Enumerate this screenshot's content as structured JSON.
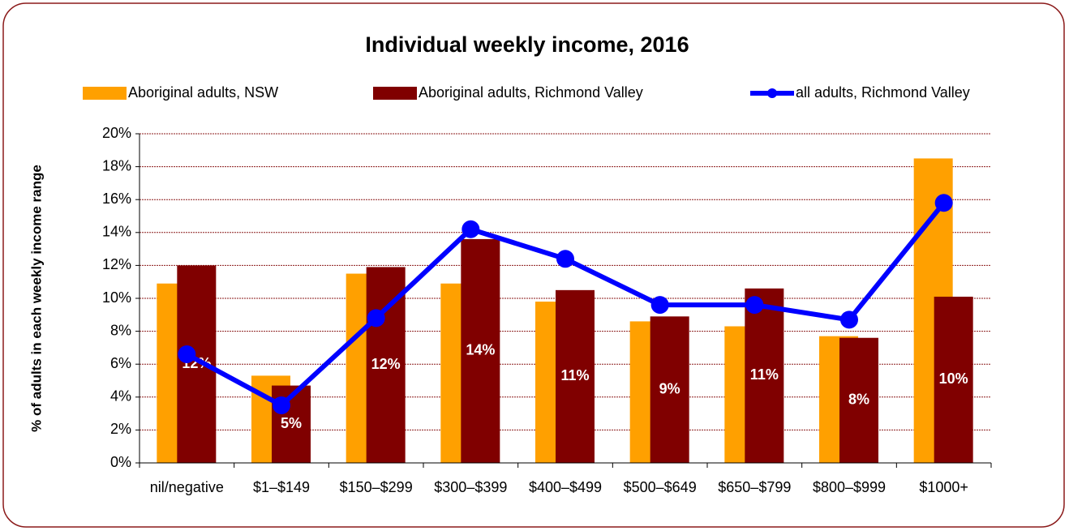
{
  "chart_data": {
    "type": "bar",
    "title": "Individual weekly income, 2016",
    "y_label": "% of adults in each weekly income range",
    "categories": [
      "nil/negative",
      "$1–$149",
      "$150–$299",
      "$300–$399",
      "$400–$499",
      "$500–$649",
      "$650–$799",
      "$800–$999",
      "$1000+"
    ],
    "series": [
      {
        "name": "Aboriginal adults, NSW",
        "color": "#ffa000",
        "kind": "bar",
        "values": [
          10.9,
          5.3,
          11.5,
          10.9,
          9.8,
          8.6,
          8.3,
          7.7,
          18.5
        ]
      },
      {
        "name": "Aboriginal adults, Richmond Valley",
        "color": "#800000",
        "kind": "bar",
        "values": [
          12.0,
          4.7,
          11.9,
          13.6,
          10.5,
          8.9,
          10.6,
          7.6,
          10.1
        ],
        "value_labels": [
          "12%",
          "5%",
          "12%",
          "14%",
          "11%",
          "9%",
          "11%",
          "8%",
          "10%"
        ]
      },
      {
        "name": "all adults, Richmond Valley",
        "color": "#0000ff",
        "kind": "line",
        "values": [
          6.6,
          3.5,
          8.8,
          14.2,
          12.4,
          9.6,
          9.6,
          8.7,
          15.8
        ]
      }
    ],
    "ylim": [
      0,
      20
    ],
    "yticks": [
      {
        "value": 0,
        "label": "0%"
      },
      {
        "value": 2,
        "label": "2%"
      },
      {
        "value": 4,
        "label": "4%"
      },
      {
        "value": 6,
        "label": "6%"
      },
      {
        "value": 8,
        "label": "8%"
      },
      {
        "value": 10,
        "label": "10%"
      },
      {
        "value": 12,
        "label": "12%"
      },
      {
        "value": 14,
        "label": "14%"
      },
      {
        "value": 16,
        "label": "16%"
      },
      {
        "value": 18,
        "label": "18%"
      },
      {
        "value": 20,
        "label": "20%"
      }
    ],
    "grid": true,
    "legend": "top"
  }
}
